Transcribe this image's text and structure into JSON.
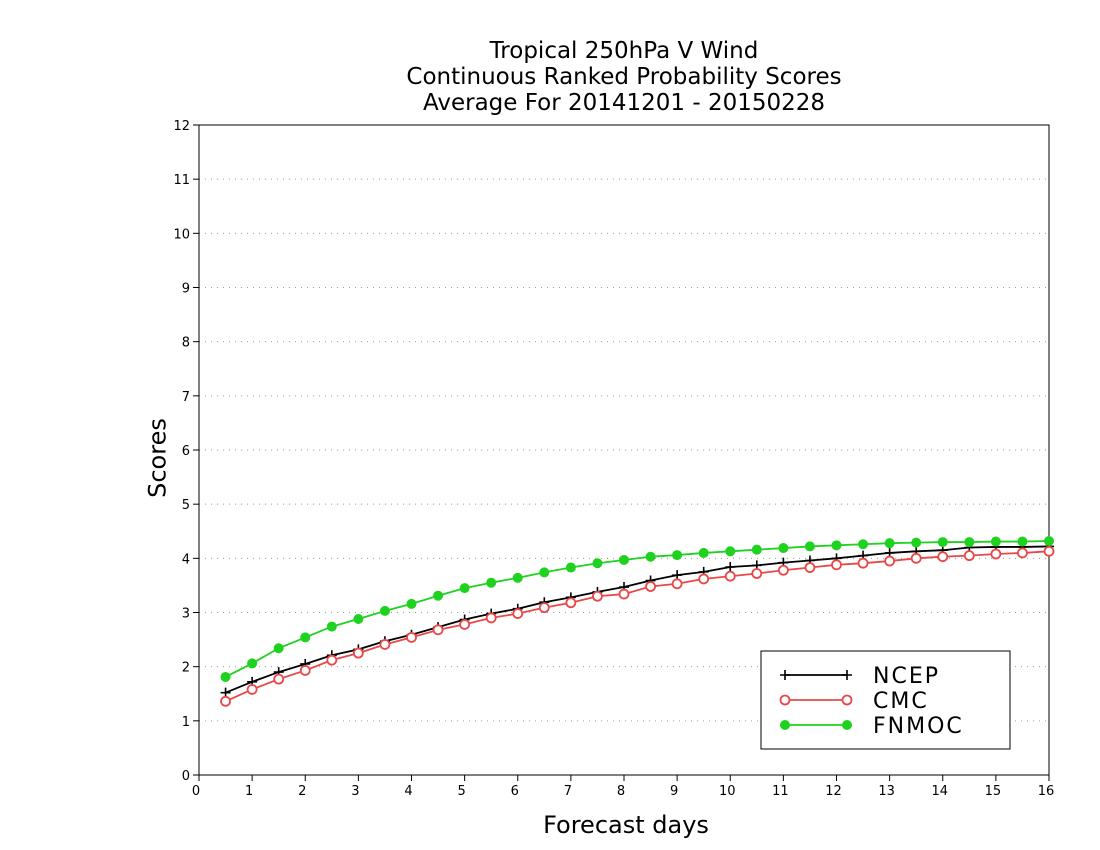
{
  "chart_data": {
    "type": "line",
    "title_lines": [
      "Tropical 250hPa V Wind",
      "Continuous Ranked Probability Scores",
      "Average For 20141201 - 20150228"
    ],
    "xlabel": "Forecast days",
    "ylabel": "Scores",
    "xlim": [
      0,
      16
    ],
    "ylim": [
      0,
      12
    ],
    "x_ticks": [
      0,
      1,
      2,
      3,
      4,
      5,
      6,
      7,
      8,
      9,
      10,
      11,
      12,
      13,
      14,
      15,
      16
    ],
    "y_ticks": [
      0,
      1,
      2,
      3,
      4,
      5,
      6,
      7,
      8,
      9,
      10,
      11,
      12
    ],
    "grid": "horizontal dotted",
    "legend_position": "bottom-right",
    "x": [
      0.5,
      1.0,
      1.5,
      2.0,
      2.5,
      3.0,
      3.5,
      4.0,
      4.5,
      5.0,
      5.5,
      6.0,
      6.5,
      7.0,
      7.5,
      8.0,
      8.5,
      9.0,
      9.5,
      10.0,
      10.5,
      11.0,
      11.5,
      12.0,
      12.5,
      13.0,
      13.5,
      14.0,
      14.5,
      15.0,
      15.5,
      16.0
    ],
    "series": [
      {
        "name": "NCEP",
        "color": "#000000",
        "marker": "plus",
        "values": [
          1.52,
          1.72,
          1.9,
          2.05,
          2.21,
          2.32,
          2.47,
          2.59,
          2.73,
          2.87,
          2.98,
          3.07,
          3.19,
          3.28,
          3.38,
          3.47,
          3.59,
          3.69,
          3.75,
          3.84,
          3.87,
          3.92,
          3.96,
          4.0,
          4.05,
          4.1,
          4.13,
          4.15,
          4.2,
          4.21,
          4.21,
          4.22
        ]
      },
      {
        "name": "CMC",
        "color": "#e84848",
        "marker": "open-circle",
        "values": [
          1.36,
          1.58,
          1.77,
          1.93,
          2.12,
          2.25,
          2.41,
          2.54,
          2.68,
          2.78,
          2.9,
          2.98,
          3.09,
          3.18,
          3.3,
          3.34,
          3.48,
          3.53,
          3.62,
          3.67,
          3.72,
          3.78,
          3.83,
          3.88,
          3.91,
          3.95,
          4.0,
          4.03,
          4.05,
          4.08,
          4.1,
          4.13
        ]
      },
      {
        "name": "FNMOC",
        "color": "#1fd21f",
        "marker": "filled-circle",
        "values": [
          1.81,
          2.06,
          2.34,
          2.54,
          2.74,
          2.88,
          3.03,
          3.16,
          3.31,
          3.45,
          3.55,
          3.64,
          3.74,
          3.83,
          3.91,
          3.97,
          4.03,
          4.06,
          4.1,
          4.13,
          4.16,
          4.19,
          4.22,
          4.24,
          4.26,
          4.28,
          4.29,
          4.3,
          4.3,
          4.31,
          4.31,
          4.32
        ]
      }
    ]
  }
}
